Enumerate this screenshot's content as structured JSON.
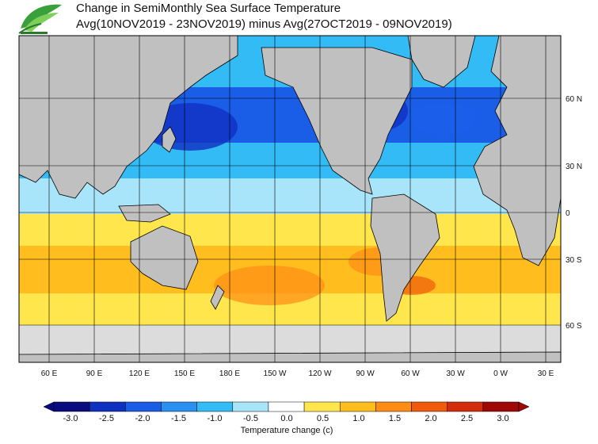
{
  "title": {
    "line1": "Change in SemiMonthly Sea Surface Temperature",
    "line2": "Avg(10NOV2019 - 23NOV2019) minus Avg(27OCT2019 - 09NOV2019)"
  },
  "logo": {
    "name": "leaf-logo-icon",
    "caption": ""
  },
  "axes": {
    "lon_labels": [
      "60 E",
      "90 E",
      "120 E",
      "150 E",
      "180 E",
      "150 W",
      "120 W",
      "90 W",
      "60 W",
      "30 W",
      "0 W",
      "30 E"
    ],
    "lat_labels": [
      "60 N",
      "30 N",
      "0",
      "30 S",
      "60 S"
    ]
  },
  "colorbar": {
    "ticks": [
      "-3.0",
      "-2.5",
      "-2.0",
      "-1.5",
      "-1.0",
      "-0.5",
      "0.0",
      "0.5",
      "1.0",
      "1.5",
      "2.0",
      "2.5",
      "3.0"
    ],
    "colors": [
      "#0b0b80",
      "#1030c0",
      "#1a5ee8",
      "#2a90f0",
      "#33bbf5",
      "#a8e4fa",
      "#ffffff",
      "#ffe64d",
      "#ffbe1e",
      "#ff8c14",
      "#f05a0a",
      "#d22c0a",
      "#a00808"
    ],
    "label": "Temperature change (c)"
  },
  "colors": {
    "land": "#c0c0c0",
    "no_data": "#dcdcdc",
    "grid": "#000000"
  }
}
